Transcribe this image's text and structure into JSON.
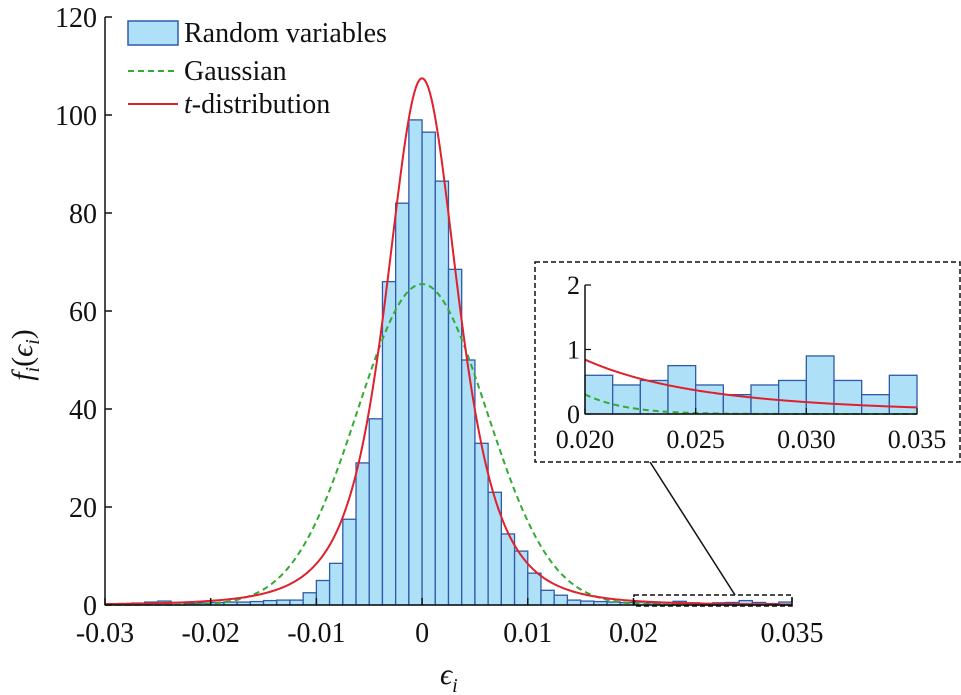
{
  "chart_data": {
    "type": "bar",
    "title": "",
    "xlabel": "ϵ",
    "xlabel_sub": "i",
    "ylabel_parts": {
      "f": "f",
      "sub_i": "i",
      "lp": "(",
      "eps": "ϵ",
      "sub_i2": "i",
      "rp": ")"
    },
    "xlim": [
      -0.03,
      0.035
    ],
    "ylim": [
      0,
      120
    ],
    "x_ticks": [
      {
        "value": -0.03,
        "label": "-0.03"
      },
      {
        "value": -0.02,
        "label": "-0.02"
      },
      {
        "value": -0.01,
        "label": "-0.01"
      },
      {
        "value": 0,
        "label": "0"
      },
      {
        "value": 0.01,
        "label": "0.01"
      },
      {
        "value": 0.02,
        "label": "0.02"
      },
      {
        "value": 0.035,
        "label": "0.035"
      }
    ],
    "y_ticks": [
      {
        "value": 0,
        "label": "0"
      },
      {
        "value": 20,
        "label": "20"
      },
      {
        "value": 40,
        "label": "40"
      },
      {
        "value": 60,
        "label": "60"
      },
      {
        "value": 80,
        "label": "80"
      },
      {
        "value": 100,
        "label": "100"
      },
      {
        "value": 120,
        "label": "120"
      }
    ],
    "legend": {
      "placement": "top-left",
      "entries": [
        {
          "label": "Random variables",
          "kind": "bar"
        },
        {
          "label": "Gaussian",
          "kind": "dashed-line"
        },
        {
          "label_italic": "t",
          "label_rest": "-distribution",
          "kind": "line"
        }
      ]
    },
    "colors": {
      "bar_fill": "#aee0f7",
      "bar_edge": "#2f5aa8",
      "gaussian": "#33aa33",
      "t_distribution": "#e0202c"
    },
    "histogram": {
      "bin_width": 0.00125,
      "bin_left_edges": [
        -0.03,
        -0.02875,
        -0.0275,
        -0.02625,
        -0.025,
        -0.02375,
        -0.0225,
        -0.02125,
        -0.02,
        -0.01875,
        -0.0175,
        -0.01625,
        -0.015,
        -0.01375,
        -0.0125,
        -0.01125,
        -0.01,
        -0.00875,
        -0.0075,
        -0.00625,
        -0.005,
        -0.00375,
        -0.0025,
        -0.00125,
        0.0,
        0.00125,
        0.0025,
        0.00375,
        0.005,
        0.00625,
        0.0075,
        0.00875,
        0.01,
        0.01125,
        0.0125,
        0.01375,
        0.015,
        0.01625,
        0.0175,
        0.01875,
        0.02,
        0.02125,
        0.0225,
        0.02375,
        0.025,
        0.02625,
        0.0275,
        0.02875,
        0.03,
        0.03125,
        0.0325,
        0.03375
      ],
      "values": [
        0.2,
        0.3,
        0.4,
        0.6,
        0.8,
        0.5,
        0.3,
        0.4,
        0.5,
        0.6,
        0.6,
        0.7,
        0.9,
        1.0,
        1.0,
        2.5,
        5.0,
        8.5,
        17.5,
        29,
        38,
        66,
        82,
        99,
        96.5,
        86.5,
        68.5,
        50,
        33,
        23,
        14.5,
        11,
        6.5,
        3,
        2,
        1,
        0.8,
        0.7,
        0.6,
        0.5,
        0.6,
        0.45,
        0.52,
        0.75,
        0.45,
        0.3,
        0.45,
        0.52,
        0.9,
        0.52,
        0.3,
        0.6
      ]
    },
    "gaussian": {
      "mean": 0,
      "peak": 65.5,
      "sigma": 0.0061
    },
    "t_distribution": {
      "location": 0,
      "peak": 107.5,
      "scale": 0.0036,
      "nu": 3
    },
    "inset": {
      "xlim": [
        0.02,
        0.035
      ],
      "ylim": [
        0,
        2
      ],
      "x_ticks": [
        {
          "value": 0.02,
          "label": "0.020"
        },
        {
          "value": 0.025,
          "label": "0.025"
        },
        {
          "value": 0.03,
          "label": "0.030"
        },
        {
          "value": 0.035,
          "label": "0.035"
        }
      ],
      "y_ticks": [
        {
          "value": 0,
          "label": "0"
        },
        {
          "value": 1,
          "label": "1"
        },
        {
          "value": 2,
          "label": "2"
        }
      ],
      "zoom_region": {
        "x": [
          0.02,
          0.035
        ],
        "y": [
          0,
          2
        ]
      }
    }
  }
}
